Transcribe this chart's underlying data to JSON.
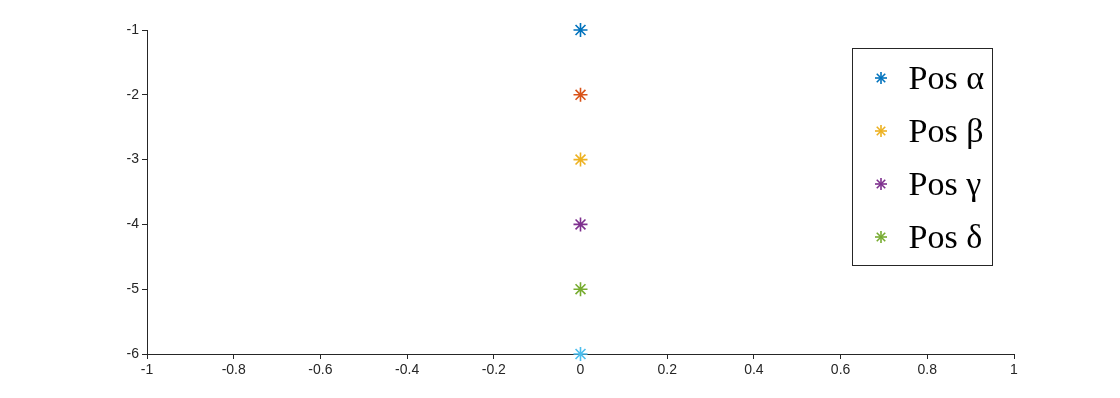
{
  "chart_data": {
    "type": "scatter",
    "marker": "cross",
    "legend": "top right",
    "grid": false,
    "xlim": [
      -1,
      1
    ],
    "xticks": [
      -1,
      -0.8,
      -0.6,
      -0.4,
      -0.2,
      0,
      0.2,
      0.4,
      0.6,
      0.8,
      1
    ],
    "ylim": [
      -6,
      -1
    ],
    "yticks": [
      -6,
      -5,
      -4,
      -3,
      -2,
      -1
    ],
    "x": [
      0
    ],
    "series": [
      {
        "name": "Pos α",
        "color": "#0072bd",
        "values": [
          -1
        ]
      },
      {
        "color": "#d95319",
        "values": [
          -2
        ]
      },
      {
        "name": "Pos β",
        "color": "#edb120",
        "values": [
          -3
        ]
      },
      {
        "name": "Pos γ",
        "color": "#7e2f8e",
        "values": [
          -4
        ]
      },
      {
        "name": "Pos δ",
        "color": "#77ac30",
        "values": [
          -5
        ]
      },
      {
        "color": "#4dbeee",
        "values": [
          -6
        ]
      }
    ]
  }
}
